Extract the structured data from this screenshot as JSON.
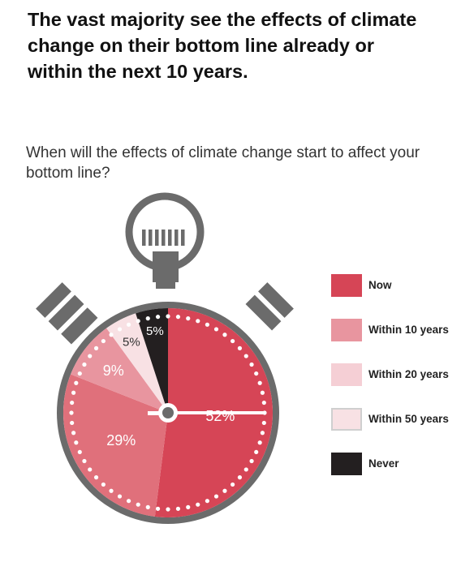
{
  "headline": "The vast majority see the effects of climate change on their bottom line already or within the next 10 years.",
  "question": "When will the effects of climate change start to affect your bottom line?",
  "chart_data": {
    "type": "pie",
    "categories": [
      "Now",
      "Within 10 years",
      "Within 20 years",
      "Within 50 years",
      "Never"
    ],
    "values": [
      52,
      29,
      9,
      5,
      5
    ],
    "labels": [
      "52%",
      "29%",
      "9%",
      "5%",
      "5%"
    ],
    "colors": [
      "#d64556",
      "#e0707b",
      "#e8959f",
      "#f8e1e4",
      "#231f20"
    ],
    "label_colors": [
      "#ffffff",
      "#ffffff",
      "#ffffff",
      "#333333",
      "#ffffff"
    ],
    "legend": {
      "position": "right",
      "swatch_colors": [
        "#d64556",
        "#e8959f",
        "#f5cfd5",
        "#f8e1e4",
        "#231f20"
      ]
    },
    "start_angle_deg": 0,
    "direction": "clockwise"
  }
}
